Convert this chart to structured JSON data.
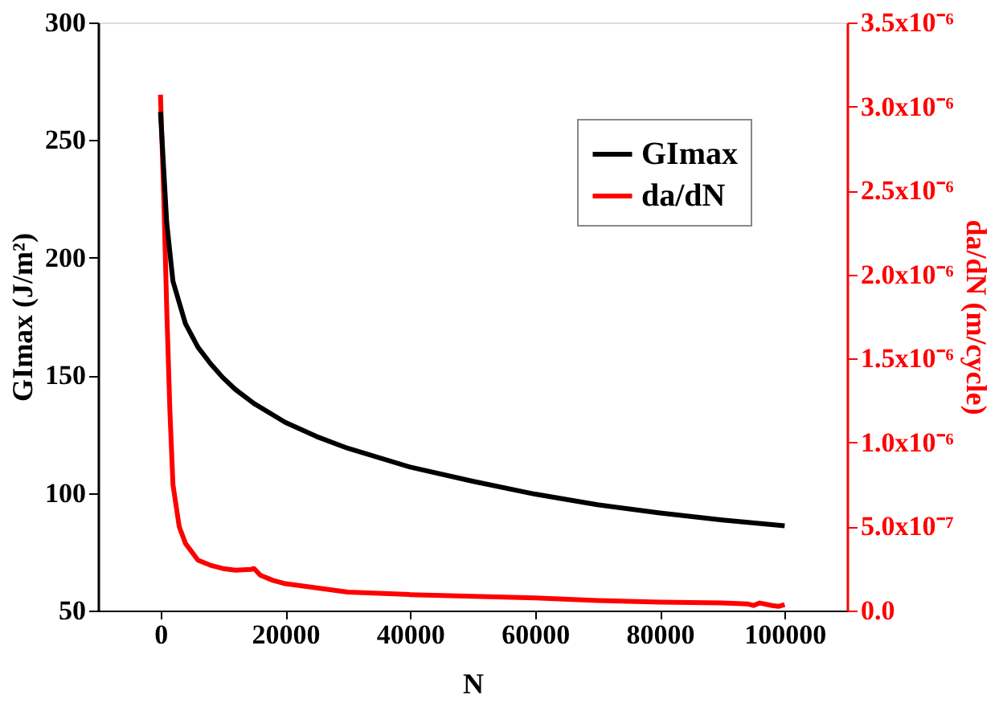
{
  "chart_data": {
    "type": "line",
    "xlabel": "N",
    "ylabel": "GImax (J/m²)",
    "y2label": "da/dN (m/cycle)",
    "xlim": [
      -10000,
      110000
    ],
    "xticks": [
      0,
      20000,
      40000,
      60000,
      80000,
      100000
    ],
    "ylim": [
      50,
      300
    ],
    "yticks": [
      50,
      100,
      150,
      200,
      250,
      300
    ],
    "y2lim": [
      0,
      3.5e-06
    ],
    "y2ticks": [
      {
        "value": 0,
        "label": "0.0"
      },
      {
        "value": 5e-07,
        "label": "5.0x10⁻⁷"
      },
      {
        "value": 1e-06,
        "label": "1.0x10⁻⁶"
      },
      {
        "value": 1.5e-06,
        "label": "1.5x10⁻⁶"
      },
      {
        "value": 2e-06,
        "label": "2.0x10⁻⁶"
      },
      {
        "value": 2.5e-06,
        "label": "2.5x10⁻⁶"
      },
      {
        "value": 3e-06,
        "label": "3.0x10⁻⁶"
      },
      {
        "value": 3.5e-06,
        "label": "3.5x10⁻⁶"
      }
    ],
    "legend": "top right",
    "grid": false,
    "marker": "none",
    "line_style": "solid",
    "series": [
      {
        "name": "GImax",
        "color": "#000000",
        "x": [
          0,
          1000,
          2000,
          4000,
          6000,
          8000,
          10000,
          12000,
          15000,
          20000,
          25000,
          30000,
          40000,
          50000,
          60000,
          70000,
          80000,
          90000,
          100000
        ],
        "values": [
          262,
          215,
          190,
          172,
          162,
          155,
          149,
          144,
          138,
          130,
          124,
          119,
          111,
          105,
          99.5,
          95,
          91.5,
          88.5,
          86
        ]
      },
      {
        "name": "da/dN",
        "color": "#ff0000",
        "axis": "y2",
        "x": [
          0,
          500,
          1000,
          1500,
          2000,
          3000,
          4000,
          6000,
          8000,
          10000,
          12000,
          14500,
          15000,
          16000,
          18000,
          20000,
          25000,
          30000,
          40000,
          50000,
          60000,
          70000,
          80000,
          90000,
          94000,
          95000,
          96000,
          98000,
          99000,
          100000
        ],
        "values": [
          3.07e-06,
          2.5e-06,
          1.8e-06,
          1.2e-06,
          7.5e-07,
          5e-07,
          4e-07,
          3e-07,
          2.7e-07,
          2.5e-07,
          2.4e-07,
          2.45e-07,
          2.5e-07,
          2.1e-07,
          1.8e-07,
          1.6e-07,
          1.35e-07,
          1.1e-07,
          9.5e-08,
          8.5e-08,
          7.5e-08,
          6e-08,
          5e-08,
          4.5e-08,
          4e-08,
          3e-08,
          4.5e-08,
          3e-08,
          2.5e-08,
          3.5e-08
        ]
      }
    ]
  }
}
